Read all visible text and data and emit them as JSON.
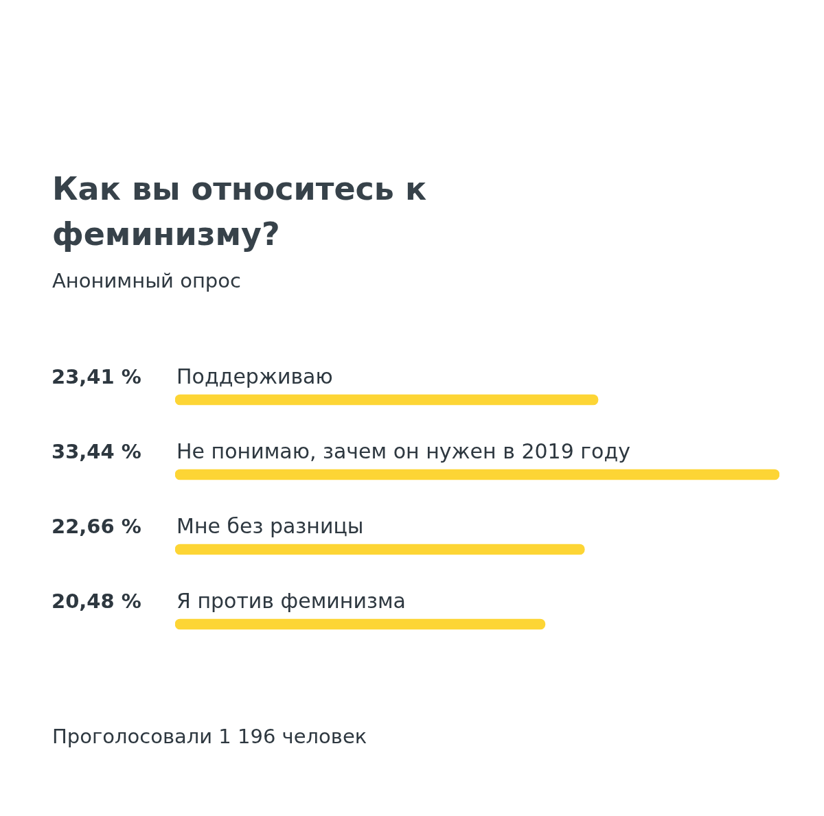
{
  "chart_data": {
    "type": "bar",
    "orientation": "horizontal",
    "title": "Как вы относитесь к феминизму?",
    "subtitle": "Анонимный опрос",
    "categories": [
      "Поддерживаю",
      "Не понимаю, зачем он нужен в 2019 году",
      "Мне без разницы",
      "Я против феминизма"
    ],
    "values": [
      23.41,
      33.44,
      22.66,
      20.48
    ],
    "value_labels": [
      "23,41 %",
      "33,44 %",
      "22,66 %",
      "20,48 %"
    ],
    "color": "#fdd535",
    "xlim": [
      0,
      33.44
    ],
    "legend": false,
    "annotations": [
      "Проголосовали 1 196 человек"
    ]
  }
}
